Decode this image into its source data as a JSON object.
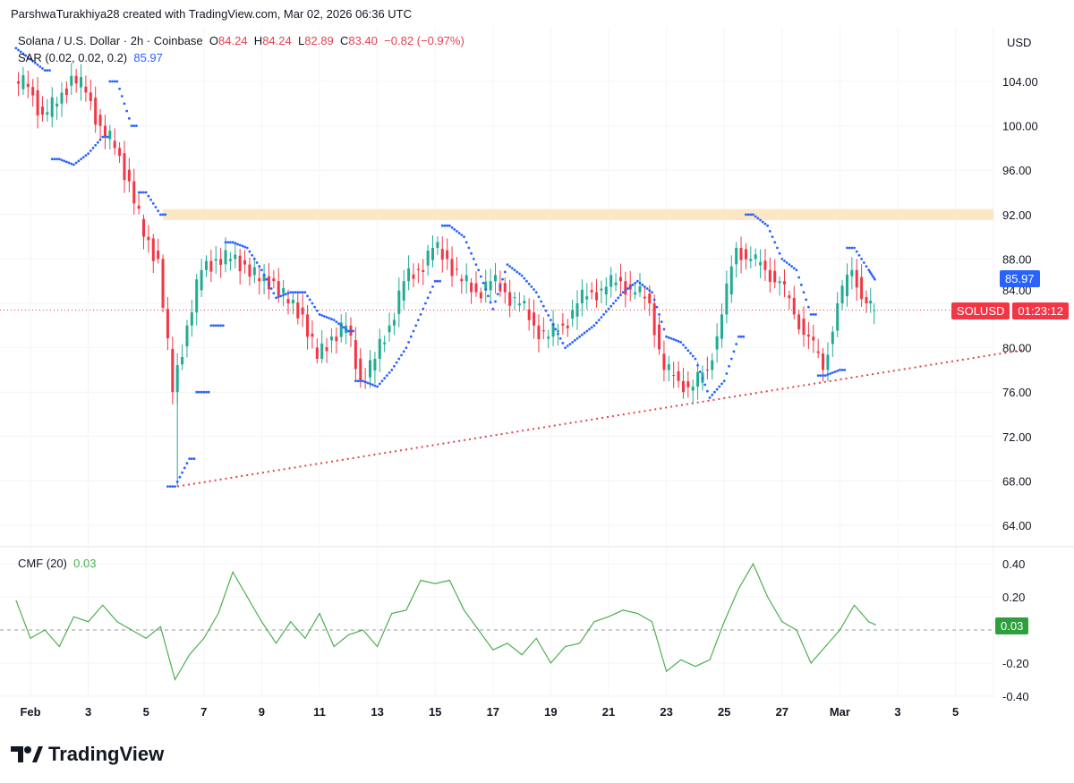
{
  "credit": "ParshwaTurakhiya28 created with TradingView.com, Mar 02, 2026 06:36 UTC",
  "legend": {
    "symbol": "Solana / U.S. Dollar · 2h · Coinbase",
    "o_label": "O",
    "o": "84.24",
    "h_label": "H",
    "h": "84.24",
    "l_label": "L",
    "l": "82.89",
    "c_label": "C",
    "c": "83.40",
    "change": "−0.82 (−0.97%)",
    "sar_label": "SAR (0.02, 0.02, 0.2)",
    "sar_value": "85.97",
    "cmf_label": "CMF (20)",
    "cmf_value": "0.03"
  },
  "currency": "USD",
  "badges": {
    "sar": "85.97",
    "symbol": "SOLUSD",
    "countdown": "01:23:12",
    "cmf": "0.03"
  },
  "brand": "TradingView",
  "colors": {
    "up": "#22ab94",
    "down": "#f23645",
    "sar": "#2962ff",
    "cmf": "#4caf50",
    "zone": "#fde3bb",
    "trend": "#e5404f"
  },
  "chart_data": [
    {
      "type": "candlestick",
      "title": "Solana / U.S. Dollar · 2h · Coinbase",
      "ylim": [
        62,
        108
      ],
      "grid": true,
      "yticks": [
        "104.00",
        "100.00",
        "96.00",
        "92.00",
        "88.00",
        "84.00",
        "80.00",
        "76.00",
        "72.00",
        "68.00",
        "64.00"
      ],
      "xticks": [
        {
          "label": "Feb",
          "t": "2026-02-01"
        },
        {
          "label": "3",
          "t": "2026-02-03"
        },
        {
          "label": "5",
          "t": "2026-02-05"
        },
        {
          "label": "7",
          "t": "2026-02-07"
        },
        {
          "label": "9",
          "t": "2026-02-09"
        },
        {
          "label": "11",
          "t": "2026-02-11"
        },
        {
          "label": "13",
          "t": "2026-02-13"
        },
        {
          "label": "15",
          "t": "2026-02-15"
        },
        {
          "label": "17",
          "t": "2026-02-17"
        },
        {
          "label": "19",
          "t": "2026-02-19"
        },
        {
          "label": "21",
          "t": "2026-02-21"
        },
        {
          "label": "23",
          "t": "2026-02-23"
        },
        {
          "label": "25",
          "t": "2026-02-25"
        },
        {
          "label": "27",
          "t": "2026-02-27"
        },
        {
          "label": "Mar",
          "t": "2026-03-01"
        },
        {
          "label": "3",
          "t": "2026-03-03"
        },
        {
          "label": "5",
          "t": "2026-03-05"
        }
      ],
      "times": [
        "2026-01-31T12:00Z",
        "2026-02-01T00:00Z",
        "2026-02-01T12:00Z",
        "2026-02-02T00:00Z",
        "2026-02-02T12:00Z",
        "2026-02-03T00:00Z",
        "2026-02-03T12:00Z",
        "2026-02-04T00:00Z",
        "2026-02-04T12:00Z",
        "2026-02-05T00:00Z",
        "2026-02-05T12:00Z",
        "2026-02-06T00:00Z",
        "2026-02-06T12:00Z",
        "2026-02-07T00:00Z",
        "2026-02-07T12:00Z",
        "2026-02-08T00:00Z",
        "2026-02-08T12:00Z",
        "2026-02-09T00:00Z",
        "2026-02-09T12:00Z",
        "2026-02-10T00:00Z",
        "2026-02-10T12:00Z",
        "2026-02-11T00:00Z",
        "2026-02-11T12:00Z",
        "2026-02-12T00:00Z",
        "2026-02-12T12:00Z",
        "2026-02-13T00:00Z",
        "2026-02-13T12:00Z",
        "2026-02-14T00:00Z",
        "2026-02-14T12:00Z",
        "2026-02-15T00:00Z",
        "2026-02-15T12:00Z",
        "2026-02-16T00:00Z",
        "2026-02-16T12:00Z",
        "2026-02-17T00:00Z",
        "2026-02-17T12:00Z",
        "2026-02-18T00:00Z",
        "2026-02-18T12:00Z",
        "2026-02-19T00:00Z",
        "2026-02-19T12:00Z",
        "2026-02-20T00:00Z",
        "2026-02-20T12:00Z",
        "2026-02-21T00:00Z",
        "2026-02-21T12:00Z",
        "2026-02-22T00:00Z",
        "2026-02-22T12:00Z",
        "2026-02-23T00:00Z",
        "2026-02-23T12:00Z",
        "2026-02-24T00:00Z",
        "2026-02-24T12:00Z",
        "2026-02-25T00:00Z",
        "2026-02-25T12:00Z",
        "2026-02-26T00:00Z",
        "2026-02-26T12:00Z",
        "2026-02-27T00:00Z",
        "2026-02-27T12:00Z",
        "2026-02-28T00:00Z",
        "2026-02-28T12:00Z",
        "2026-03-01T00:00Z",
        "2026-03-01T12:00Z",
        "2026-03-02T00:00Z",
        "2026-03-02T06:00Z"
      ],
      "close": [
        104,
        103.5,
        101,
        102,
        104.5,
        103,
        100,
        98,
        95,
        90,
        88,
        76,
        82,
        87,
        88,
        88,
        87.5,
        86,
        86,
        84,
        83,
        79,
        81,
        82,
        77,
        79,
        82,
        86,
        87,
        89,
        88,
        86,
        85,
        86,
        85,
        84,
        82,
        81,
        82,
        84,
        85,
        85.5,
        86,
        85,
        84,
        78,
        77,
        76.5,
        78,
        83,
        89,
        88,
        87,
        86,
        83,
        81,
        78,
        84,
        87,
        84,
        83.4
      ],
      "sar": [
        107,
        106,
        105,
        97,
        96.5,
        97.5,
        99,
        104,
        100,
        94,
        92,
        67.5,
        70,
        76,
        82,
        89.5,
        89,
        87,
        84.5,
        85,
        85,
        83,
        82.5,
        81.5,
        77,
        76.5,
        78,
        80,
        83,
        86,
        91,
        90,
        87,
        83.5,
        87.5,
        86.5,
        85,
        82.5,
        80,
        81,
        82,
        83.5,
        85,
        86,
        85,
        81,
        80.5,
        79,
        75.5,
        77,
        81,
        92,
        91,
        88,
        87,
        83,
        77.5,
        78,
        89,
        87,
        86
      ],
      "current_price": 83.4,
      "resistance_zone": {
        "from": 91.5,
        "to": 92.5,
        "start": "2026-02-05T14:00Z"
      },
      "trendline": [
        {
          "t": "2026-02-06T02:00Z",
          "price": 67.5
        },
        {
          "t": "2026-03-07T08:00Z",
          "price": 79.8
        }
      ]
    },
    {
      "type": "line",
      "title": "CMF (20)",
      "ylim": [
        -0.42,
        0.44
      ],
      "yticks": [
        "0.40",
        "0.20",
        "-0.20",
        "-0.40"
      ],
      "baseline": 0,
      "values": [
        0.18,
        -0.05,
        0.0,
        -0.1,
        0.08,
        0.05,
        0.15,
        0.05,
        0.0,
        -0.05,
        0.02,
        -0.3,
        -0.15,
        -0.05,
        0.1,
        0.35,
        0.2,
        0.05,
        -0.08,
        0.05,
        -0.05,
        0.1,
        -0.1,
        -0.03,
        0.0,
        -0.1,
        0.1,
        0.12,
        0.3,
        0.28,
        0.3,
        0.12,
        0.0,
        -0.12,
        -0.08,
        -0.15,
        -0.05,
        -0.2,
        -0.1,
        -0.08,
        0.05,
        0.08,
        0.12,
        0.1,
        0.05,
        -0.25,
        -0.18,
        -0.22,
        -0.18,
        0.05,
        0.25,
        0.4,
        0.2,
        0.05,
        0.0,
        -0.2,
        -0.1,
        0.0,
        0.15,
        0.05,
        0.03
      ]
    }
  ]
}
